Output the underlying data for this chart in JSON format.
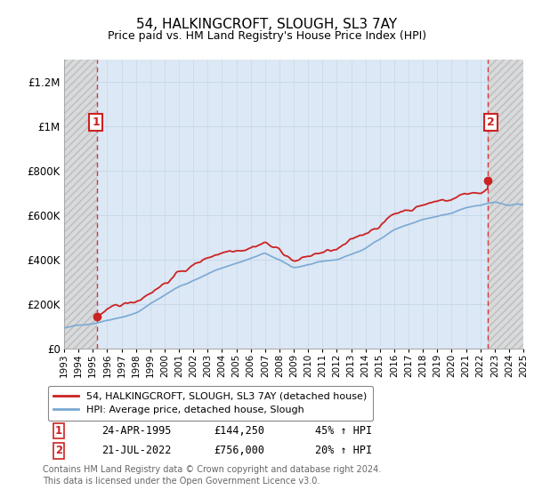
{
  "title": "54, HALKINGCROFT, SLOUGH, SL3 7AY",
  "subtitle": "Price paid vs. HM Land Registry's House Price Index (HPI)",
  "ylim": [
    0,
    1300000
  ],
  "yticks": [
    0,
    200000,
    400000,
    600000,
    800000,
    1000000,
    1200000
  ],
  "ytick_labels": [
    "£0",
    "£200K",
    "£400K",
    "£600K",
    "£800K",
    "£1M",
    "£1.2M"
  ],
  "x_start_year": 1993,
  "x_end_year": 2025,
  "hpi_color": "#7aa8d4",
  "price_color": "#cc2222",
  "grid_color": "#c8d8e8",
  "background_color": "#dce8f5",
  "sale1_year": 1995.31,
  "sale1_price": 144250,
  "sale2_year": 2022.54,
  "sale2_price": 756000,
  "legend_line1": "54, HALKINGCROFT, SLOUGH, SL3 7AY (detached house)",
  "legend_line2": "HPI: Average price, detached house, Slough",
  "ann1_date": "24-APR-1995",
  "ann1_price": "£144,250",
  "ann1_hpi": "45% ↑ HPI",
  "ann2_date": "21-JUL-2022",
  "ann2_price": "£756,000",
  "ann2_hpi": "20% ↑ HPI",
  "footer": "Contains HM Land Registry data © Crown copyright and database right 2024.\nThis data is licensed under the Open Government Licence v3.0."
}
